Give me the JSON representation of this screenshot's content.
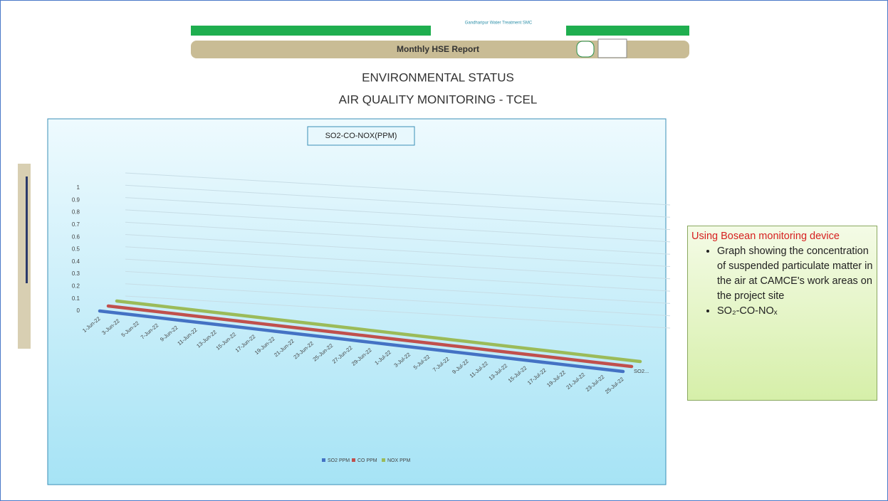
{
  "header": {
    "logo_text": "Gandharipur Water Treatment SMC",
    "report": "Monthly HSE Report",
    "title_1": "ENVIRONMENTAL  STATUS",
    "title_2": "AIR QUALITY MONITORING - TCEL"
  },
  "chart_data": {
    "type": "line3d",
    "title": "SO2-CO-NOX(PPM)",
    "categories": [
      "1-Jun-22",
      "3-Jun-22",
      "5-Jun-22",
      "7-Jun-22",
      "9-Jun-22",
      "11-Jun-22",
      "13-Jun-22",
      "15-Jun-22",
      "17-Jun-22",
      "19-Jun-22",
      "21-Jun-22",
      "23-Jun-22",
      "25-Jun-22",
      "27-Jun-22",
      "29-Jun-22",
      "1-Jul-22",
      "3-Jul-22",
      "5-Jul-22",
      "7-Jul-22",
      "9-Jul-22",
      "11-Jul-22",
      "13-Jul-22",
      "15-Jul-22",
      "17-Jul-22",
      "19-Jul-22",
      "21-Jul-22",
      "23-Jul-22",
      "25-Jul-22"
    ],
    "series": [
      {
        "name": "SO2 PPM",
        "color": "#4472c4",
        "values": [
          0,
          0,
          0,
          0,
          0,
          0,
          0,
          0,
          0,
          0,
          0,
          0,
          0,
          0,
          0,
          0,
          0,
          0,
          0,
          0,
          0,
          0,
          0,
          0,
          0,
          0,
          0,
          0
        ]
      },
      {
        "name": "CO PPM",
        "color": "#c0504d",
        "values": [
          0,
          0,
          0,
          0,
          0,
          0,
          0,
          0,
          0,
          0,
          0,
          0,
          0,
          0,
          0,
          0,
          0,
          0,
          0,
          0,
          0,
          0,
          0,
          0,
          0,
          0,
          0,
          0
        ]
      },
      {
        "name": "NOX PPM",
        "color": "#9bbb59",
        "values": [
          0,
          0,
          0,
          0,
          0,
          0,
          0,
          0,
          0,
          0,
          0,
          0,
          0,
          0,
          0,
          0,
          0,
          0,
          0,
          0,
          0,
          0,
          0,
          0,
          0,
          0,
          0,
          0
        ]
      }
    ],
    "depth_label": "SO2...",
    "ylim": [
      0,
      1
    ],
    "yticks": [
      0,
      0.1,
      0.2,
      0.3,
      0.4,
      0.5,
      0.6,
      0.7,
      0.8,
      0.9,
      1
    ],
    "grid": true,
    "legend": "bottom"
  },
  "note": {
    "heading": "Using Bosean monitoring device",
    "bullets": [
      "Graph showing the concentration of suspended particulate matter in the air at CAMCE's work areas on the project site",
      "SO₂-CO-NOₓ"
    ]
  }
}
